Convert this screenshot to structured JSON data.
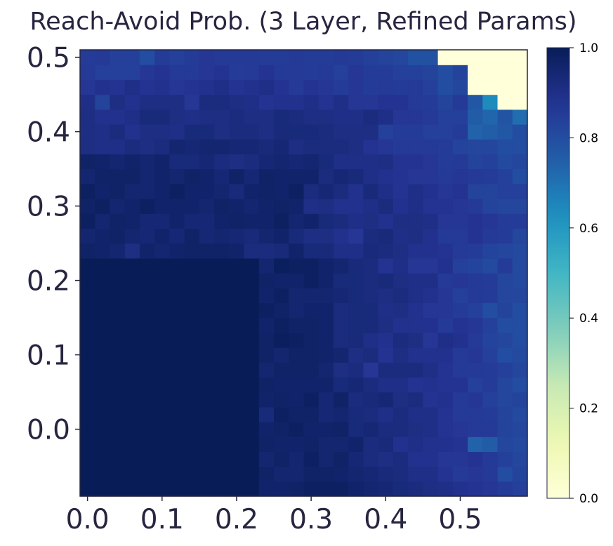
{
  "chart_data": {
    "type": "heatmap",
    "title": "Reach-Avoid Prob. (3 Layer, Refined Params)",
    "colormap": "YlGnBu",
    "x_range": [
      -0.01,
      0.59
    ],
    "y_range": [
      -0.09,
      0.51
    ],
    "x_ticks": [
      0.0,
      0.1,
      0.2,
      0.3,
      0.4,
      0.5
    ],
    "x_tick_labels": [
      "0.0",
      "0.1",
      "0.2",
      "0.3",
      "0.4",
      "0.5"
    ],
    "y_ticks": [
      0.0,
      0.1,
      0.2,
      0.3,
      0.4,
      0.5
    ],
    "y_tick_labels": [
      "0.0",
      "0.1",
      "0.2",
      "0.3",
      "0.4",
      "0.5"
    ],
    "colorbar": {
      "range": [
        0.0,
        1.0
      ],
      "ticks": [
        0.0,
        0.2,
        0.4,
        0.6,
        0.8,
        1.0
      ],
      "tick_labels": [
        "0.0",
        "0.2",
        "0.4",
        "0.6",
        "0.8",
        "1.0"
      ]
    },
    "grid_shape": [
      30,
      30
    ],
    "cells": [
      [
        1,
        1,
        1,
        1,
        1,
        1,
        1,
        1,
        1,
        1,
        1,
        1,
        0.96,
        0.96,
        0.97,
        0.98,
        0.98,
        0.98,
        0.96,
        0.95,
        0.94,
        0.93,
        0.92,
        0.91,
        0.9,
        0.89,
        0.88,
        0.87,
        0.85,
        0.84
      ],
      [
        1,
        1,
        1,
        1,
        1,
        1,
        1,
        1,
        1,
        1,
        1,
        1,
        0.97,
        0.95,
        0.95,
        0.97,
        0.97,
        0.96,
        0.95,
        0.94,
        0.93,
        0.92,
        0.9,
        0.9,
        0.88,
        0.86,
        0.87,
        0.86,
        0.8,
        0.83
      ],
      [
        1,
        1,
        1,
        1,
        1,
        1,
        1,
        1,
        1,
        1,
        1,
        1,
        0.95,
        0.97,
        0.95,
        0.98,
        0.95,
        0.97,
        0.94,
        0.92,
        0.91,
        0.92,
        0.89,
        0.89,
        0.87,
        0.87,
        0.88,
        0.86,
        0.84,
        0.82
      ],
      [
        1,
        1,
        1,
        1,
        1,
        1,
        1,
        1,
        1,
        1,
        1,
        1,
        0.97,
        0.96,
        0.96,
        0.97,
        0.95,
        0.95,
        0.96,
        0.92,
        0.93,
        0.89,
        0.9,
        0.89,
        0.89,
        0.88,
        0.74,
        0.76,
        0.82,
        0.81
      ],
      [
        1,
        1,
        1,
        1,
        1,
        1,
        1,
        1,
        1,
        1,
        1,
        1,
        0.96,
        0.97,
        0.98,
        0.96,
        0.96,
        0.97,
        0.93,
        0.94,
        0.92,
        0.92,
        0.91,
        0.9,
        0.88,
        0.87,
        0.86,
        0.86,
        0.83,
        0.82
      ],
      [
        1,
        1,
        1,
        1,
        1,
        1,
        1,
        1,
        1,
        1,
        1,
        1,
        0.93,
        0.98,
        0.97,
        0.97,
        0.94,
        0.95,
        0.93,
        0.92,
        0.9,
        0.92,
        0.9,
        0.9,
        0.88,
        0.86,
        0.86,
        0.85,
        0.83,
        0.81
      ],
      [
        1,
        1,
        1,
        1,
        1,
        1,
        1,
        1,
        1,
        1,
        1,
        1,
        0.96,
        0.97,
        0.96,
        0.98,
        0.94,
        0.97,
        0.92,
        0.93,
        0.94,
        0.91,
        0.92,
        0.88,
        0.89,
        0.86,
        0.87,
        0.84,
        0.82,
        0.83
      ],
      [
        1,
        1,
        1,
        1,
        1,
        1,
        1,
        1,
        1,
        1,
        1,
        1,
        0.97,
        0.96,
        0.96,
        0.96,
        0.96,
        0.93,
        0.94,
        0.92,
        0.9,
        0.9,
        0.88,
        0.89,
        0.88,
        0.88,
        0.84,
        0.85,
        0.82,
        0.8
      ],
      [
        1,
        1,
        1,
        1,
        1,
        1,
        1,
        1,
        1,
        1,
        1,
        1,
        0.95,
        0.97,
        0.97,
        0.97,
        0.95,
        0.91,
        0.92,
        0.87,
        0.92,
        0.92,
        0.92,
        0.9,
        0.88,
        0.86,
        0.86,
        0.85,
        0.84,
        0.82
      ],
      [
        1,
        1,
        1,
        1,
        1,
        1,
        1,
        1,
        1,
        1,
        1,
        1,
        0.97,
        0.95,
        0.97,
        0.97,
        0.96,
        0.95,
        0.91,
        0.92,
        0.88,
        0.91,
        0.89,
        0.89,
        0.89,
        0.86,
        0.87,
        0.84,
        0.8,
        0.81
      ],
      [
        1,
        1,
        1,
        1,
        1,
        1,
        1,
        1,
        1,
        1,
        1,
        1,
        0.97,
        0.99,
        0.98,
        0.97,
        0.96,
        0.92,
        0.93,
        0.9,
        0.89,
        0.92,
        0.91,
        0.87,
        0.9,
        0.89,
        0.86,
        0.83,
        0.82,
        0.8
      ],
      [
        1,
        1,
        1,
        1,
        1,
        1,
        1,
        1,
        1,
        1,
        1,
        1,
        0.96,
        0.98,
        0.97,
        0.97,
        0.96,
        0.92,
        0.93,
        0.93,
        0.91,
        0.89,
        0.89,
        0.89,
        0.86,
        0.88,
        0.87,
        0.84,
        0.8,
        0.8
      ],
      [
        1,
        1,
        1,
        1,
        1,
        1,
        1,
        1,
        1,
        1,
        1,
        1,
        0.98,
        0.97,
        0.95,
        0.96,
        0.96,
        0.92,
        0.93,
        0.93,
        0.9,
        0.91,
        0.89,
        0.87,
        0.87,
        0.85,
        0.84,
        0.8,
        0.83,
        0.8
      ],
      [
        1,
        1,
        1,
        1,
        1,
        1,
        1,
        1,
        1,
        1,
        1,
        1,
        0.96,
        0.98,
        0.95,
        0.95,
        0.95,
        0.94,
        0.93,
        0.92,
        0.91,
        0.92,
        0.9,
        0.89,
        0.87,
        0.84,
        0.86,
        0.85,
        0.82,
        0.82
      ],
      [
        1,
        1,
        1,
        1,
        1,
        1,
        1,
        1,
        1,
        1,
        1,
        1,
        0.97,
        0.96,
        0.96,
        0.98,
        0.96,
        0.93,
        0.93,
        0.92,
        0.93,
        0.91,
        0.9,
        0.9,
        0.86,
        0.87,
        0.86,
        0.85,
        0.82,
        0.81
      ],
      [
        1,
        1,
        1,
        1,
        1,
        1,
        1,
        1,
        1,
        1,
        1,
        1,
        0.95,
        0.99,
        0.98,
        0.98,
        0.96,
        0.95,
        0.93,
        0.92,
        0.88,
        0.9,
        0.87,
        0.87,
        0.89,
        0.84,
        0.83,
        0.81,
        0.85,
        0.81
      ],
      [
        0.97,
        0.96,
        0.95,
        0.91,
        0.96,
        0.95,
        0.96,
        0.97,
        0.97,
        0.97,
        0.96,
        0.92,
        0.92,
        0.93,
        0.96,
        0.93,
        0.93,
        0.9,
        0.9,
        0.93,
        0.92,
        0.91,
        0.89,
        0.89,
        0.88,
        0.86,
        0.85,
        0.83,
        0.82,
        0.81
      ],
      [
        0.95,
        0.96,
        0.97,
        0.95,
        0.94,
        0.96,
        0.94,
        0.97,
        0.94,
        0.95,
        0.94,
        0.93,
        0.95,
        0.96,
        0.93,
        0.91,
        0.91,
        0.89,
        0.87,
        0.92,
        0.93,
        0.9,
        0.91,
        0.89,
        0.86,
        0.86,
        0.88,
        0.86,
        0.85,
        0.82
      ],
      [
        0.98,
        0.95,
        0.97,
        0.96,
        0.94,
        0.94,
        0.96,
        0.94,
        0.94,
        0.96,
        0.97,
        0.96,
        0.96,
        0.98,
        0.95,
        0.96,
        0.93,
        0.92,
        0.9,
        0.91,
        0.89,
        0.91,
        0.91,
        0.9,
        0.87,
        0.87,
        0.88,
        0.87,
        0.85,
        0.85
      ],
      [
        0.97,
        0.98,
        0.95,
        0.96,
        0.98,
        0.96,
        0.96,
        0.96,
        0.95,
        0.97,
        0.96,
        0.95,
        0.96,
        0.97,
        0.96,
        0.9,
        0.91,
        0.89,
        0.89,
        0.9,
        0.92,
        0.89,
        0.9,
        0.88,
        0.88,
        0.87,
        0.86,
        0.83,
        0.82,
        0.82
      ],
      [
        0.98,
        0.96,
        0.97,
        0.95,
        0.95,
        0.96,
        0.98,
        0.96,
        0.96,
        0.95,
        0.93,
        0.96,
        0.97,
        0.96,
        0.98,
        0.92,
        0.94,
        0.92,
        0.89,
        0.93,
        0.9,
        0.88,
        0.9,
        0.89,
        0.87,
        0.88,
        0.83,
        0.83,
        0.84,
        0.84
      ],
      [
        0.95,
        0.97,
        0.97,
        0.97,
        0.95,
        0.96,
        0.95,
        0.97,
        0.96,
        0.94,
        0.97,
        0.94,
        0.97,
        0.96,
        0.96,
        0.96,
        0.92,
        0.94,
        0.93,
        0.9,
        0.89,
        0.88,
        0.87,
        0.87,
        0.86,
        0.87,
        0.86,
        0.85,
        0.84,
        0.8
      ],
      [
        0.97,
        0.96,
        0.95,
        0.96,
        0.95,
        0.96,
        0.93,
        0.93,
        0.94,
        0.92,
        0.91,
        0.92,
        0.94,
        0.95,
        0.94,
        0.95,
        0.93,
        0.9,
        0.9,
        0.9,
        0.91,
        0.88,
        0.88,
        0.87,
        0.85,
        0.86,
        0.83,
        0.84,
        0.81,
        0.82
      ],
      [
        0.91,
        0.9,
        0.9,
        0.92,
        0.91,
        0.92,
        0.95,
        0.94,
        0.95,
        0.95,
        0.94,
        0.94,
        0.93,
        0.94,
        0.91,
        0.92,
        0.92,
        0.92,
        0.91,
        0.88,
        0.87,
        0.86,
        0.86,
        0.86,
        0.85,
        0.83,
        0.82,
        0.82,
        0.8,
        0.8
      ],
      [
        0.91,
        0.9,
        0.92,
        0.89,
        0.91,
        0.91,
        0.9,
        0.93,
        0.93,
        0.91,
        0.92,
        0.92,
        0.91,
        0.93,
        0.93,
        0.93,
        0.92,
        0.91,
        0.91,
        0.91,
        0.84,
        0.85,
        0.85,
        0.84,
        0.84,
        0.85,
        0.74,
        0.75,
        0.77,
        0.8
      ],
      [
        0.91,
        0.89,
        0.89,
        0.9,
        0.93,
        0.93,
        0.91,
        0.9,
        0.91,
        0.91,
        0.92,
        0.91,
        0.91,
        0.93,
        0.92,
        0.91,
        0.91,
        0.9,
        0.9,
        0.92,
        0.9,
        0.87,
        0.87,
        0.86,
        0.84,
        0.84,
        0.76,
        0.73,
        0.78,
        0.71
      ],
      [
        0.9,
        0.83,
        0.91,
        0.89,
        0.91,
        0.91,
        0.91,
        0.87,
        0.92,
        0.92,
        0.91,
        0.9,
        0.88,
        0.89,
        0.89,
        0.9,
        0.88,
        0.9,
        0.87,
        0.87,
        0.88,
        0.88,
        0.86,
        0.85,
        0.83,
        0.86,
        0.77,
        0.64,
        0.0,
        0.0
      ],
      [
        0.87,
        0.89,
        0.88,
        0.9,
        0.88,
        0.89,
        0.87,
        0.88,
        0.89,
        0.9,
        0.88,
        0.89,
        0.9,
        0.88,
        0.86,
        0.88,
        0.87,
        0.85,
        0.87,
        0.85,
        0.86,
        0.85,
        0.86,
        0.84,
        0.8,
        0.82,
        0.0,
        0.0,
        0.0,
        0.0
      ],
      [
        0.86,
        0.84,
        0.84,
        0.84,
        0.87,
        0.88,
        0.86,
        0.86,
        0.87,
        0.88,
        0.85,
        0.86,
        0.88,
        0.86,
        0.86,
        0.85,
        0.86,
        0.84,
        0.87,
        0.85,
        0.85,
        0.84,
        0.84,
        0.83,
        0.8,
        0.83,
        0.0,
        0.0,
        0.0,
        0.0
      ],
      [
        0.85,
        0.86,
        0.84,
        0.84,
        0.8,
        0.85,
        0.84,
        0.85,
        0.87,
        0.86,
        0.86,
        0.86,
        0.85,
        0.85,
        0.86,
        0.85,
        0.85,
        0.86,
        0.85,
        0.84,
        0.83,
        0.82,
        0.79,
        0.79,
        0.0,
        0.0,
        0.0,
        0.0,
        0.0,
        0.0
      ]
    ]
  },
  "colors": {
    "axis": "#262640",
    "text": "#262640",
    "background": "#ffffff"
  }
}
